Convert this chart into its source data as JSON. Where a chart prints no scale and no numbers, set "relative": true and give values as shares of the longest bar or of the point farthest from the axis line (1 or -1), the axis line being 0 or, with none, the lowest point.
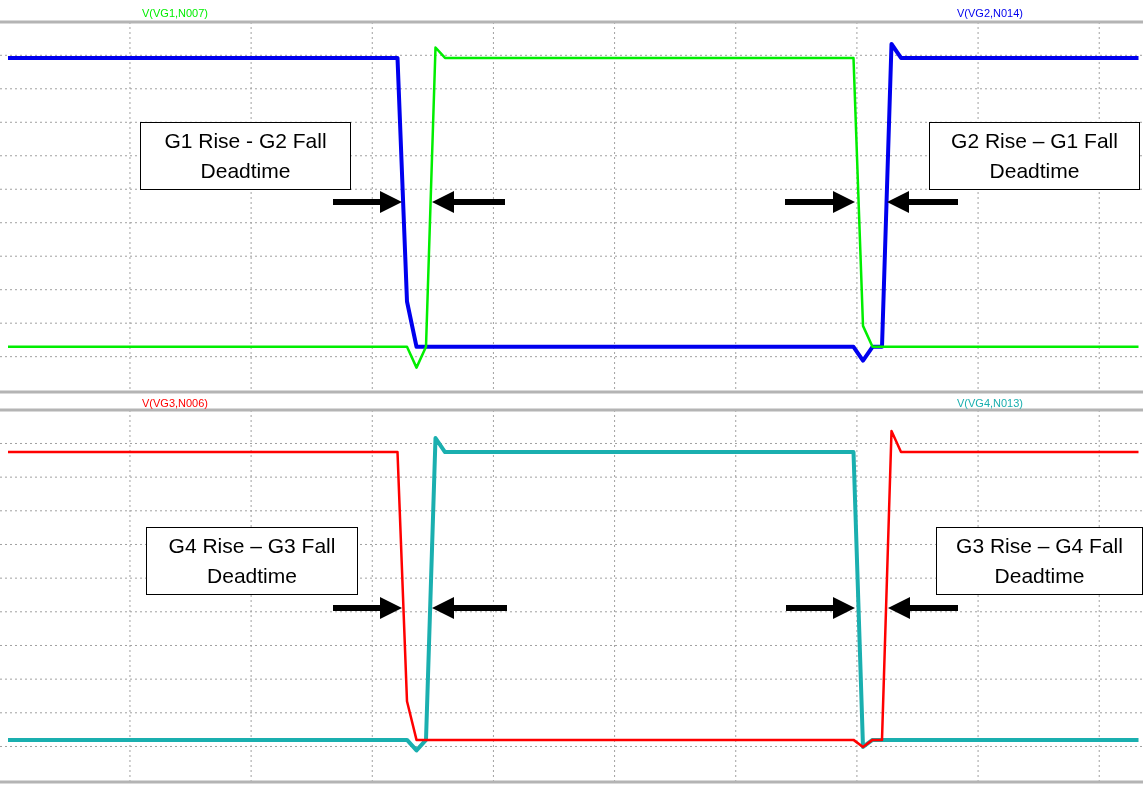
{
  "chart_data": [
    {
      "type": "line",
      "relative": true,
      "grid": true,
      "legend": "top",
      "marker": "none",
      "categories": [
        null,
        null,
        null,
        null,
        null,
        null,
        null,
        null,
        null,
        null,
        null,
        null,
        null,
        null,
        null,
        null,
        null,
        null,
        null,
        null,
        null,
        null,
        null,
        null,
        null,
        null,
        null,
        null,
        null,
        null,
        null,
        null,
        null,
        null,
        null,
        null,
        null,
        null,
        null,
        null,
        null,
        null,
        null,
        null,
        null,
        null,
        null,
        null,
        null,
        null,
        null,
        null,
        null,
        null,
        null,
        null,
        null,
        null,
        null,
        null,
        null,
        null,
        null,
        null,
        null,
        null,
        null,
        null,
        null,
        null,
        null,
        null,
        null,
        null,
        null,
        null,
        null,
        null,
        null,
        null,
        null,
        null,
        null,
        null,
        null,
        null,
        null,
        null,
        null,
        null,
        null,
        null,
        null,
        null,
        null,
        null,
        null,
        null,
        null,
        null,
        null,
        null,
        null,
        null,
        null,
        null,
        null,
        null,
        null,
        null,
        null,
        null,
        null,
        null,
        null,
        null,
        null,
        null,
        null,
        null
      ],
      "series": [
        {
          "name": "V(VG1,N007)",
          "color": "#00ee00",
          "values": [
            0.13,
            0.13,
            0.13,
            0.13,
            0.13,
            0.13,
            0.13,
            0.13,
            0.13,
            0.13,
            0.13,
            0.13,
            0.13,
            0.13,
            0.13,
            0.13,
            0.13,
            0.13,
            0.13,
            0.13,
            0.13,
            0.13,
            0.13,
            0.13,
            0.13,
            0.13,
            0.13,
            0.13,
            0.13,
            0.13,
            0.13,
            0.13,
            0.13,
            0.13,
            0.13,
            0.13,
            0.13,
            0.13,
            0.13,
            0.13,
            0.13,
            0.13,
            0.13,
            0.07,
            0.13,
            0.99,
            0.96,
            0.96,
            0.96,
            0.96,
            0.96,
            0.96,
            0.96,
            0.96,
            0.96,
            0.96,
            0.96,
            0.96,
            0.96,
            0.96,
            0.96,
            0.96,
            0.96,
            0.96,
            0.96,
            0.96,
            0.96,
            0.96,
            0.96,
            0.96,
            0.96,
            0.96,
            0.96,
            0.96,
            0.96,
            0.96,
            0.96,
            0.96,
            0.96,
            0.96,
            0.96,
            0.96,
            0.96,
            0.96,
            0.96,
            0.96,
            0.96,
            0.96,
            0.96,
            0.96,
            0.19,
            0.13,
            0.13,
            0.13,
            0.13,
            0.13,
            0.13,
            0.13,
            0.13,
            0.13,
            0.13,
            0.13,
            0.13,
            0.13,
            0.13,
            0.13,
            0.13,
            0.13,
            0.13,
            0.13,
            0.13,
            0.13,
            0.13,
            0.13,
            0.13,
            0.13,
            0.13,
            0.13,
            0.13,
            0.13
          ]
        },
        {
          "name": "V(VG2,N014)",
          "color": "#0000ee",
          "values": [
            0.96,
            0.96,
            0.96,
            0.96,
            0.96,
            0.96,
            0.96,
            0.96,
            0.96,
            0.96,
            0.96,
            0.96,
            0.96,
            0.96,
            0.96,
            0.96,
            0.96,
            0.96,
            0.96,
            0.96,
            0.96,
            0.96,
            0.96,
            0.96,
            0.96,
            0.96,
            0.96,
            0.96,
            0.96,
            0.96,
            0.96,
            0.96,
            0.96,
            0.96,
            0.96,
            0.96,
            0.96,
            0.96,
            0.96,
            0.96,
            0.96,
            0.96,
            0.26,
            0.13,
            0.13,
            0.13,
            0.13,
            0.13,
            0.13,
            0.13,
            0.13,
            0.13,
            0.13,
            0.13,
            0.13,
            0.13,
            0.13,
            0.13,
            0.13,
            0.13,
            0.13,
            0.13,
            0.13,
            0.13,
            0.13,
            0.13,
            0.13,
            0.13,
            0.13,
            0.13,
            0.13,
            0.13,
            0.13,
            0.13,
            0.13,
            0.13,
            0.13,
            0.13,
            0.13,
            0.13,
            0.13,
            0.13,
            0.13,
            0.13,
            0.13,
            0.13,
            0.13,
            0.13,
            0.13,
            0.13,
            0.09,
            0.13,
            0.13,
            1,
            0.96,
            0.96,
            0.96,
            0.96,
            0.96,
            0.96,
            0.96,
            0.96,
            0.96,
            0.96,
            0.96,
            0.96,
            0.96,
            0.96,
            0.96,
            0.96,
            0.96,
            0.96,
            0.96,
            0.96,
            0.96,
            0.96,
            0.96,
            0.96,
            0.96,
            0.96
          ]
        }
      ],
      "annotations": [
        "G1 Rise - G2 Fall\nDeadtime",
        "G2 Rise – G1 Fall\nDeadtime"
      ]
    },
    {
      "type": "line",
      "relative": true,
      "grid": true,
      "legend": "top",
      "marker": "none",
      "categories": [
        null,
        null,
        null,
        null,
        null,
        null,
        null,
        null,
        null,
        null,
        null,
        null,
        null,
        null,
        null,
        null,
        null,
        null,
        null,
        null,
        null,
        null,
        null,
        null,
        null,
        null,
        null,
        null,
        null,
        null,
        null,
        null,
        null,
        null,
        null,
        null,
        null,
        null,
        null,
        null,
        null,
        null,
        null,
        null,
        null,
        null,
        null,
        null,
        null,
        null,
        null,
        null,
        null,
        null,
        null,
        null,
        null,
        null,
        null,
        null,
        null,
        null,
        null,
        null,
        null,
        null,
        null,
        null,
        null,
        null,
        null,
        null,
        null,
        null,
        null,
        null,
        null,
        null,
        null,
        null,
        null,
        null,
        null,
        null,
        null,
        null,
        null,
        null,
        null,
        null,
        null,
        null,
        null,
        null,
        null,
        null,
        null,
        null,
        null,
        null,
        null,
        null,
        null,
        null,
        null,
        null,
        null,
        null,
        null,
        null,
        null,
        null,
        null,
        null,
        null,
        null,
        null,
        null,
        null,
        null
      ],
      "series": [
        {
          "name": "V(VG3,N006)",
          "color": "#ff0000",
          "values": [
            0.94,
            0.94,
            0.94,
            0.94,
            0.94,
            0.94,
            0.94,
            0.94,
            0.94,
            0.94,
            0.94,
            0.94,
            0.94,
            0.94,
            0.94,
            0.94,
            0.94,
            0.94,
            0.94,
            0.94,
            0.94,
            0.94,
            0.94,
            0.94,
            0.94,
            0.94,
            0.94,
            0.94,
            0.94,
            0.94,
            0.94,
            0.94,
            0.94,
            0.94,
            0.94,
            0.94,
            0.94,
            0.94,
            0.94,
            0.94,
            0.94,
            0.94,
            0.23,
            0.12,
            0.12,
            0.12,
            0.12,
            0.12,
            0.12,
            0.12,
            0.12,
            0.12,
            0.12,
            0.12,
            0.12,
            0.12,
            0.12,
            0.12,
            0.12,
            0.12,
            0.12,
            0.12,
            0.12,
            0.12,
            0.12,
            0.12,
            0.12,
            0.12,
            0.12,
            0.12,
            0.12,
            0.12,
            0.12,
            0.12,
            0.12,
            0.12,
            0.12,
            0.12,
            0.12,
            0.12,
            0.12,
            0.12,
            0.12,
            0.12,
            0.12,
            0.12,
            0.12,
            0.12,
            0.12,
            0.12,
            0.1,
            0.12,
            0.12,
            1,
            0.94,
            0.94,
            0.94,
            0.94,
            0.94,
            0.94,
            0.94,
            0.94,
            0.94,
            0.94,
            0.94,
            0.94,
            0.94,
            0.94,
            0.94,
            0.94,
            0.94,
            0.94,
            0.94,
            0.94,
            0.94,
            0.94,
            0.94,
            0.94,
            0.94,
            0.94
          ]
        },
        {
          "name": "V(VG4,N013)",
          "color": "#1aafaf",
          "values": [
            0.12,
            0.12,
            0.12,
            0.12,
            0.12,
            0.12,
            0.12,
            0.12,
            0.12,
            0.12,
            0.12,
            0.12,
            0.12,
            0.12,
            0.12,
            0.12,
            0.12,
            0.12,
            0.12,
            0.12,
            0.12,
            0.12,
            0.12,
            0.12,
            0.12,
            0.12,
            0.12,
            0.12,
            0.12,
            0.12,
            0.12,
            0.12,
            0.12,
            0.12,
            0.12,
            0.12,
            0.12,
            0.12,
            0.12,
            0.12,
            0.12,
            0.12,
            0.12,
            0.09,
            0.12,
            0.98,
            0.94,
            0.94,
            0.94,
            0.94,
            0.94,
            0.94,
            0.94,
            0.94,
            0.94,
            0.94,
            0.94,
            0.94,
            0.94,
            0.94,
            0.94,
            0.94,
            0.94,
            0.94,
            0.94,
            0.94,
            0.94,
            0.94,
            0.94,
            0.94,
            0.94,
            0.94,
            0.94,
            0.94,
            0.94,
            0.94,
            0.94,
            0.94,
            0.94,
            0.94,
            0.94,
            0.94,
            0.94,
            0.94,
            0.94,
            0.94,
            0.94,
            0.94,
            0.94,
            0.94,
            0.1,
            0.12,
            0.12,
            0.12,
            0.12,
            0.12,
            0.12,
            0.12,
            0.12,
            0.12,
            0.12,
            0.12,
            0.12,
            0.12,
            0.12,
            0.12,
            0.12,
            0.12,
            0.12,
            0.12,
            0.12,
            0.12,
            0.12,
            0.12,
            0.12,
            0.12,
            0.12,
            0.12,
            0.12,
            0.12
          ]
        }
      ],
      "annotations": [
        "G4 Rise – G3 Fall\nDeadtime",
        "G3 Rise – G4 Fall\nDeadtime"
      ]
    }
  ]
}
